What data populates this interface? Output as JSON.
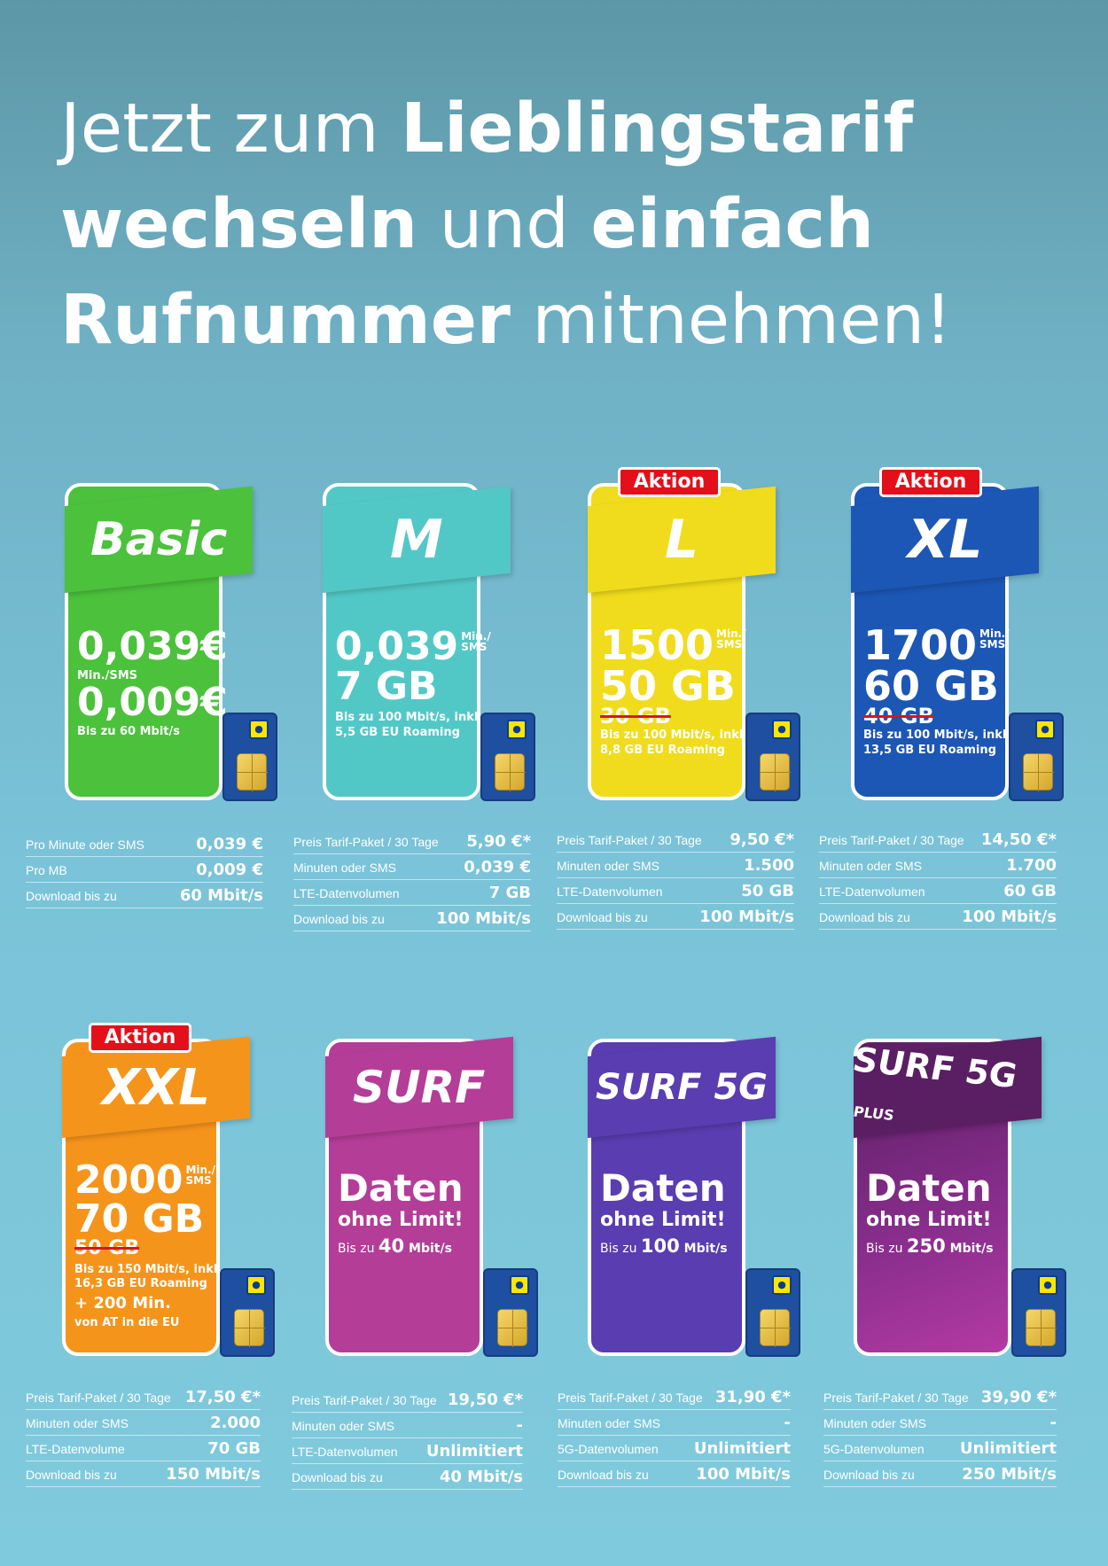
{
  "headline": {
    "line1_a": "Jetzt zum ",
    "line1_b": "Lieblingstarif",
    "line2_a": "wechseln",
    "line2_b": " und ",
    "line2_c": "einfach",
    "line3_a": "Rufnummer",
    "line3_b": " mitnehmen!"
  },
  "colors": {
    "basic": "#4cc13c",
    "m": "#52c8c6",
    "l": "#f0dc1c",
    "xl": "#1c57b5",
    "xxl": "#f5941b",
    "surf": "#b43d98",
    "surf5g": "#5a3db0",
    "surf5gplus": "#8a2e8e",
    "badge": "#e3101b"
  },
  "tariffs": [
    {
      "name": "Basic",
      "badge": "",
      "big1": "0,039€",
      "small1": "Min./SMS",
      "big2": "0,009€",
      "small2": "Bis zu 60 Mbit/s",
      "rows": [
        {
          "label": "Pro Minute oder SMS",
          "value": "0,039 €"
        },
        {
          "label": "Pro MB",
          "value": "0,009 €"
        },
        {
          "label": "Download bis zu",
          "value": "60 Mbit/s"
        }
      ]
    },
    {
      "name": "M",
      "badge": "",
      "big1": "0,039",
      "sup1": "Min./",
      "sup2": "SMS",
      "big2": "7 GB",
      "small1": "Bis zu 100 Mbit/s, inkl.",
      "small2": "5,5 GB EU Roaming",
      "rows": [
        {
          "label": "Preis Tarif-Paket / 30 Tage",
          "value": "5,90 €*"
        },
        {
          "label": "Minuten oder SMS",
          "value": "0,039 €"
        },
        {
          "label": "LTE-Datenvolumen",
          "value": "7 GB"
        },
        {
          "label": "Download bis zu",
          "value": "100 Mbit/s"
        }
      ]
    },
    {
      "name": "L",
      "badge": "Aktion",
      "big1": "1500",
      "sup1": "Min./",
      "sup2": "SMS",
      "big2": "50 GB",
      "old": "30 GB",
      "small1": "Bis zu 100 Mbit/s, inkl.",
      "small2": "8,8 GB EU Roaming",
      "rows": [
        {
          "label": "Preis Tarif-Paket / 30 Tage",
          "value": "9,50 €*"
        },
        {
          "label": "Minuten oder SMS",
          "value": "1.500"
        },
        {
          "label": "LTE-Datenvolumen",
          "value": "50 GB"
        },
        {
          "label": "Download bis zu",
          "value": "100 Mbit/s"
        }
      ]
    },
    {
      "name": "XL",
      "badge": "Aktion",
      "big1": "1700",
      "sup1": "Min./",
      "sup2": "SMS",
      "big2": "60 GB",
      "old": "40 GB",
      "small1": "Bis zu 100 Mbit/s, inkl.",
      "small2": "13,5 GB EU Roaming",
      "rows": [
        {
          "label": "Preis Tarif-Paket / 30 Tage",
          "value": "14,50 €*"
        },
        {
          "label": "Minuten oder SMS",
          "value": "1.700"
        },
        {
          "label": "LTE-Datenvolumen",
          "value": "60 GB"
        },
        {
          "label": "Download bis zu",
          "value": "100 Mbit/s"
        }
      ]
    },
    {
      "name": "XXL",
      "badge": "Aktion",
      "big1": "2000",
      "sup1": "Min./",
      "sup2": "SMS",
      "big2": "70 GB",
      "old": "50 GB",
      "small1": "Bis zu 150 Mbit/s, inkl.",
      "small2": "16,3 GB EU Roaming",
      "extra1": "+ 200 Min.",
      "extra2": "von AT in die EU",
      "rows": [
        {
          "label": "Preis Tarif-Paket / 30 Tage",
          "value": "17,50 €*"
        },
        {
          "label": "Minuten oder SMS",
          "value": "2.000"
        },
        {
          "label": "LTE-Datenvolume",
          "value": "70 GB"
        },
        {
          "label": "Download bis zu",
          "value": "150 Mbit/s"
        }
      ]
    },
    {
      "name": "SURF",
      "badge": "",
      "big1": "Daten",
      "mid": "ohne Limit!",
      "small_pre": "Bis zu ",
      "small_num": "40",
      "small_unit": " Mbit/s",
      "rows": [
        {
          "label": "Preis Tarif-Paket / 30 Tage",
          "value": "19,50 €*"
        },
        {
          "label": "Minuten oder SMS",
          "value": "-"
        },
        {
          "label": "LTE-Datenvolumen",
          "value": "Unlimitiert"
        },
        {
          "label": "Download bis zu",
          "value": "40 Mbit/s"
        }
      ]
    },
    {
      "name": "SURF 5G",
      "badge": "",
      "big1": "Daten",
      "mid": "ohne Limit!",
      "small_pre": "Bis zu ",
      "small_num": "100",
      "small_unit": " Mbit/s",
      "rows": [
        {
          "label": "Preis Tarif-Paket / 30 Tage",
          "value": "31,90 €*"
        },
        {
          "label": "Minuten oder SMS",
          "value": "-"
        },
        {
          "label": "5G-Datenvolumen",
          "value": "Unlimitiert"
        },
        {
          "label": "Download bis zu",
          "value": "100 Mbit/s"
        }
      ]
    },
    {
      "name": "SURF 5G",
      "name_sub": "PLUS",
      "badge": "",
      "big1": "Daten",
      "mid": "ohne Limit!",
      "small_pre": "Bis zu ",
      "small_num": "250",
      "small_unit": " Mbit/s",
      "rows": [
        {
          "label": "Preis Tarif-Paket / 30 Tage",
          "value": "39,90 €*"
        },
        {
          "label": "Minuten oder SMS",
          "value": "-"
        },
        {
          "label": "5G-Datenvolumen",
          "value": "Unlimitiert"
        },
        {
          "label": "Download bis zu",
          "value": "250 Mbit/s"
        }
      ]
    }
  ]
}
